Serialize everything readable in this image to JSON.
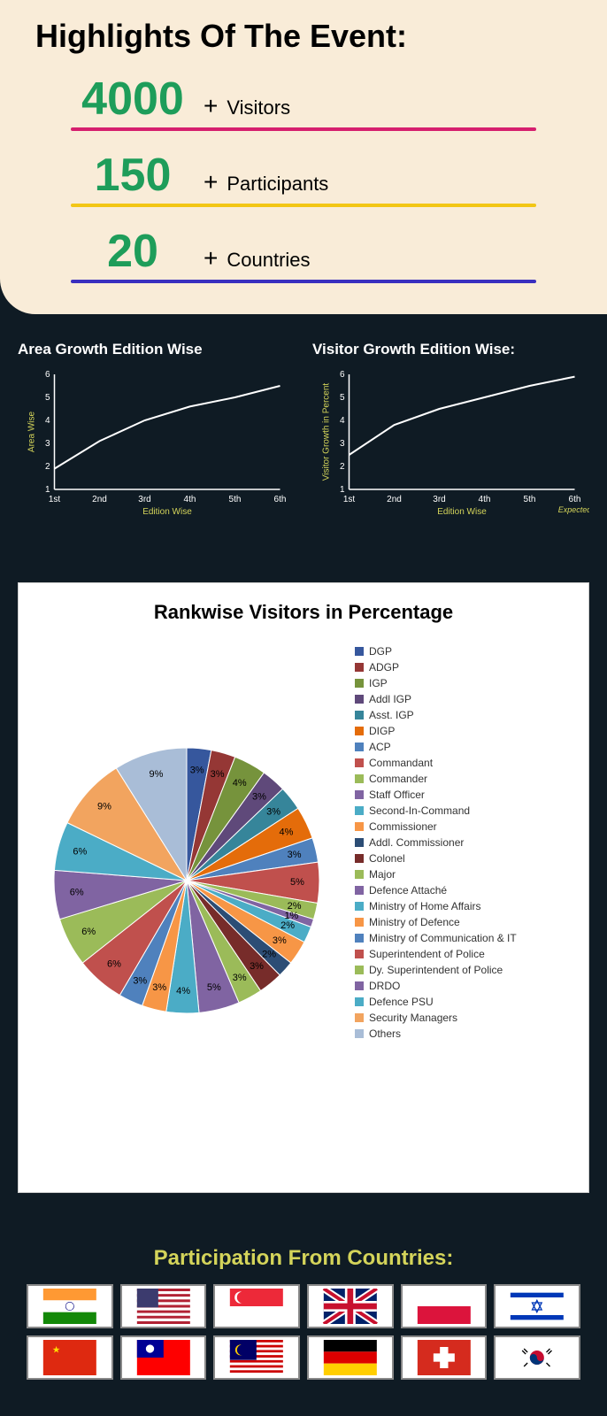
{
  "highlights": {
    "title": "Highlights Of The Event:",
    "stats": [
      {
        "num": "4000",
        "label": "Visitors",
        "underline_color": "#d61f6e"
      },
      {
        "num": "150",
        "label": "Participants",
        "underline_color": "#f2c615"
      },
      {
        "num": "20",
        "label": "Countries",
        "underline_color": "#3a2fbf"
      }
    ],
    "num_color": "#1e9d5a",
    "background": "#f9ecd8"
  },
  "line_charts": [
    {
      "title": "Area Growth Edition Wise",
      "ylabel": "Area Wise",
      "xlabel": "Edition Wise",
      "x_ticks": [
        "1st",
        "2nd",
        "3rd",
        "4th",
        "5th",
        "6th"
      ],
      "y_ticks": [
        1,
        2,
        3,
        4,
        5,
        6
      ],
      "values": [
        1.9,
        3.1,
        4.0,
        4.6,
        5.0,
        5.5
      ],
      "expected_note": ""
    },
    {
      "title": "Visitor Growth Edition Wise:",
      "ylabel": "Visitor Growth in Percent",
      "xlabel": "Edition Wise",
      "x_ticks": [
        "1st",
        "2nd",
        "3rd",
        "4th",
        "5th",
        "6th"
      ],
      "y_ticks": [
        1,
        2,
        3,
        4,
        5,
        6
      ],
      "values": [
        2.5,
        3.8,
        4.5,
        5.0,
        5.5,
        5.9
      ],
      "expected_note": "Expected"
    }
  ],
  "line_chart_style": {
    "ylim": [
      1,
      6
    ],
    "axis_color": "#ffffff",
    "label_color": "#d4d45a",
    "line_color": "#ffffff",
    "background": "#0f1b24"
  },
  "pie": {
    "title": "Rankwise Visitors in Percentage",
    "slices": [
      {
        "label": "DGP",
        "value": 3,
        "color": "#36579d"
      },
      {
        "label": "ADGP",
        "value": 3,
        "color": "#953735"
      },
      {
        "label": "IGP",
        "value": 4,
        "color": "#76933c"
      },
      {
        "label": "Addl IGP",
        "value": 3,
        "color": "#5f497a"
      },
      {
        "label": "Asst. IGP",
        "value": 3,
        "color": "#36859a"
      },
      {
        "label": "DIGP",
        "value": 4,
        "color": "#e46c0a"
      },
      {
        "label": "ACP",
        "value": 3,
        "color": "#4f81bd"
      },
      {
        "label": "Commandant",
        "value": 5,
        "color": "#c0504d"
      },
      {
        "label": "Commander",
        "value": 2,
        "color": "#9bbb59"
      },
      {
        "label": "Staff Officer",
        "value": 1,
        "color": "#8064a2"
      },
      {
        "label": "Second-In-Command",
        "value": 2,
        "color": "#4bacc6"
      },
      {
        "label": "Commissioner",
        "value": 3,
        "color": "#f79646"
      },
      {
        "label": "Addl. Commissioner",
        "value": 2,
        "color": "#2c4d75"
      },
      {
        "label": "Colonel",
        "value": 3,
        "color": "#772c2a"
      },
      {
        "label": "Major",
        "value": 3,
        "color": "#9bbb59"
      },
      {
        "label": "Defence Attaché",
        "value": 5,
        "color": "#8064a2"
      },
      {
        "label": "Ministry of Home Affairs",
        "value": 4,
        "color": "#4bacc6"
      },
      {
        "label": "Ministry of Defence",
        "value": 3,
        "color": "#f79646"
      },
      {
        "label": "Ministry of Communication & IT",
        "value": 3,
        "color": "#4f81bd"
      },
      {
        "label": "Superintendent of Police",
        "value": 6,
        "color": "#c0504d"
      },
      {
        "label": "Dy. Superintendent of Police",
        "value": 6,
        "color": "#9bbb59"
      },
      {
        "label": "DRDO",
        "value": 6,
        "color": "#8064a2"
      },
      {
        "label": "Defence PSU",
        "value": 6,
        "color": "#4bacc6"
      },
      {
        "label": "Security Managers",
        "value": 9,
        "color": "#f2a45f"
      },
      {
        "label": "Others",
        "value": 9,
        "color": "#a9bdd7"
      }
    ],
    "background": "#ffffff",
    "title_fontsize": 22
  },
  "countries": {
    "title": "Participation From Countries:",
    "title_color": "#d4d45a",
    "flags": [
      "india",
      "usa",
      "singapore",
      "uk",
      "poland",
      "israel",
      "china",
      "taiwan",
      "malaysia",
      "germany",
      "switzerland",
      "southkorea"
    ]
  }
}
